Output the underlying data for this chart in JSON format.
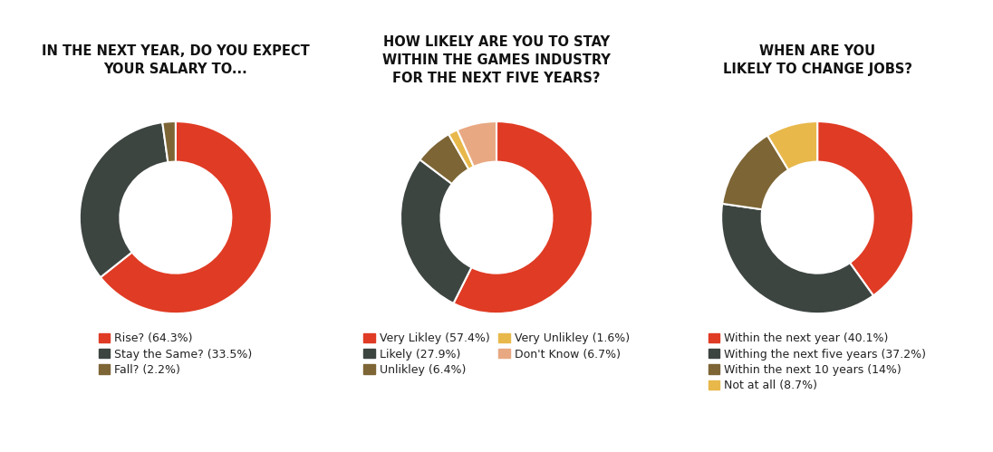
{
  "chart1": {
    "title": "IN THE NEXT YEAR, DO YOU EXPECT\nYOUR SALARY TO...",
    "values": [
      64.3,
      33.5,
      2.2
    ],
    "colors": [
      "#E03B24",
      "#3D4541",
      "#7D6535"
    ],
    "labels": [
      "Rise? (64.3%)",
      "Stay the Same? (33.5%)",
      "Fall? (2.2%)"
    ],
    "start_angle": 90,
    "ncol": 1
  },
  "chart2": {
    "title": "HOW LIKELY ARE YOU TO STAY\nWITHIN THE GAMES INDUSTRY\nFOR THE NEXT FIVE YEARS?",
    "values": [
      57.4,
      27.9,
      6.4,
      1.6,
      6.7
    ],
    "colors": [
      "#E03B24",
      "#3D4541",
      "#7D6535",
      "#E8B84B",
      "#E8A882"
    ],
    "labels": [
      "Very Likley (57.4%)",
      "Likely (27.9%)",
      "Unlikley (6.4%)",
      "Very Unlikley (1.6%)",
      "Don't Know (6.7%)"
    ],
    "start_angle": 90,
    "ncol": 2
  },
  "chart3": {
    "title": "WHEN ARE YOU\nLIKELY TO CHANGE JOBS?",
    "values": [
      40.1,
      37.2,
      14.0,
      8.7
    ],
    "colors": [
      "#E03B24",
      "#3D4541",
      "#7D6535",
      "#E8B84B"
    ],
    "labels": [
      "Within the next year (40.1%)",
      "Withing the next five years (37.2%)",
      "Within the next 10 years (14%)",
      "Not at all (8.7%)"
    ],
    "start_angle": 90,
    "ncol": 1
  },
  "background_color": "#FFFFFF",
  "title_fontsize": 10.5,
  "legend_fontsize": 9,
  "donut_width": 0.42
}
